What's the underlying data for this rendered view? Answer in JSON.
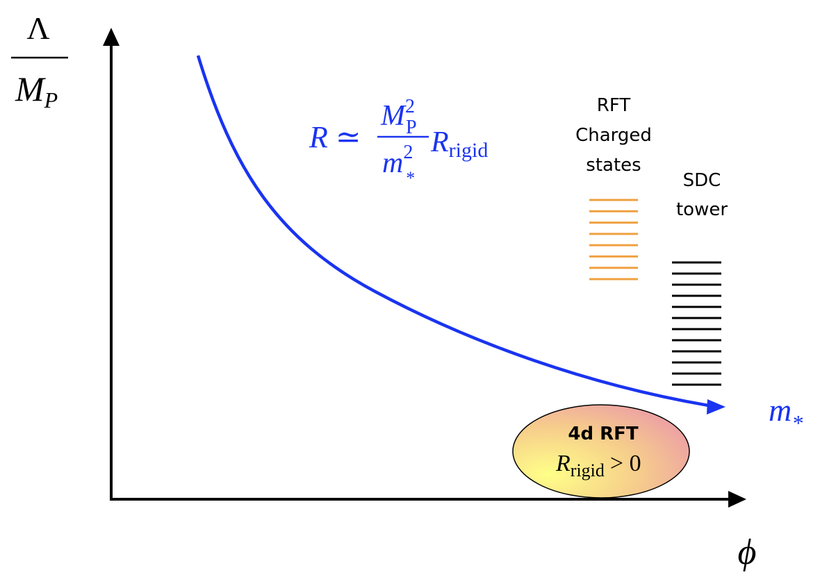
{
  "axes": {
    "y_label_numerator": "Λ",
    "y_label_denominator_main": "M",
    "y_label_denominator_sub": "P",
    "x_label": "ϕ"
  },
  "curve": {
    "color": "#1a34f0",
    "end_label_main": "m",
    "end_label_sub": "*"
  },
  "formula": {
    "lhs": "R ≃",
    "num_main": "M",
    "num_sub": "P",
    "num_sup": "2",
    "den_main": "m",
    "den_sub": "*",
    "den_sup": "2",
    "rhs_main": "R",
    "rhs_sub": "rigid"
  },
  "rft_states": {
    "label_lines": [
      "RFT",
      "Charged",
      "states"
    ],
    "color": "#f0a040",
    "line_count": 8
  },
  "sdc_tower": {
    "label_lines": [
      "SDC",
      "tower"
    ],
    "color": "#000000",
    "line_count": 12
  },
  "rft_region": {
    "title": "4d RFT",
    "cond_main": "R",
    "cond_sub": "rigid",
    "cond_rhs": "> 0"
  }
}
